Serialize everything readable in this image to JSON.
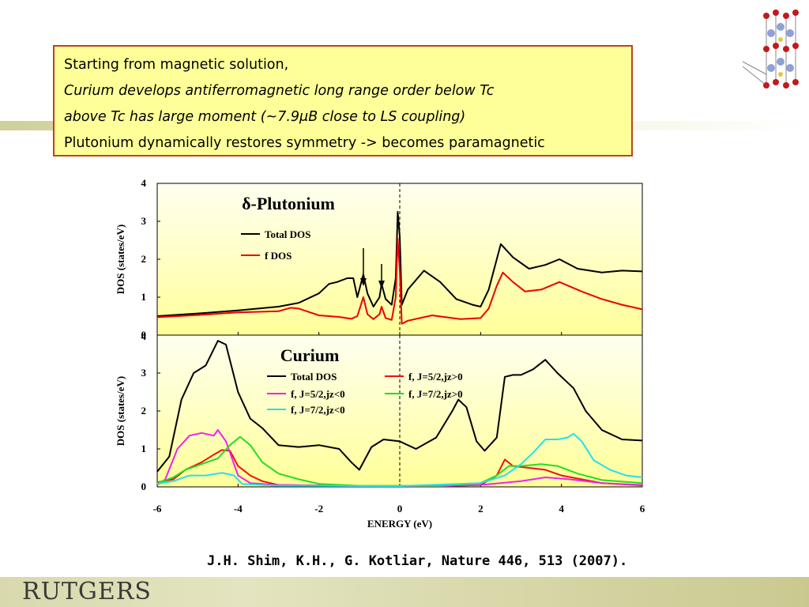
{
  "note": {
    "line1": "Starting from magnetic solution,",
    "line2": "Curium develops antiferromagnetic long range order below Tc",
    "line3": "above Tc has large moment (~7.9μB close to LS coupling)",
    "line4": "Plutonium dynamically restores symmetry -> becomes paramagnetic"
  },
  "citation": "J.H. Shim, K.H., G. Kotliar, Nature 446, 513 (2007).",
  "logo": {
    "text": "RUTGERS"
  },
  "colors": {
    "total": "#000000",
    "f": "#ee0000",
    "f_52_pos": "#ee1111",
    "f_52_neg": "#ee22ee",
    "f_72_pos": "#22dd22",
    "f_72_neg": "#22e0ee",
    "plot_bg_top": "#fffff0",
    "plot_bg_bottom": "#ffff99",
    "box_border": "#c0431a",
    "box_bg": "#ffff99"
  },
  "chart_data": [
    {
      "type": "line",
      "title": "δ-Plutonium",
      "xlabel": "",
      "ylabel": "DOS (states/eV)",
      "xlim": [
        -6,
        6
      ],
      "ylim": [
        0,
        4
      ],
      "yticks": [
        "0",
        "1",
        "2",
        "3",
        "4"
      ],
      "fermi_level": 0,
      "arrows_at_x": [
        -0.9,
        -0.45
      ],
      "series": [
        {
          "name": "Total DOS",
          "color": "#000000",
          "points": [
            [
              -6,
              0.5
            ],
            [
              -5,
              0.57
            ],
            [
              -4,
              0.65
            ],
            [
              -3,
              0.75
            ],
            [
              -2.5,
              0.85
            ],
            [
              -2,
              1.1
            ],
            [
              -1.75,
              1.35
            ],
            [
              -1.55,
              1.4
            ],
            [
              -1.3,
              1.5
            ],
            [
              -1.15,
              1.5
            ],
            [
              -1.05,
              1.0
            ],
            [
              -0.9,
              1.6
            ],
            [
              -0.8,
              1.1
            ],
            [
              -0.65,
              0.75
            ],
            [
              -0.5,
              1.0
            ],
            [
              -0.45,
              1.35
            ],
            [
              -0.35,
              0.95
            ],
            [
              -0.2,
              0.8
            ],
            [
              -0.1,
              1.5
            ],
            [
              -0.05,
              3.25
            ],
            [
              0,
              2.6
            ],
            [
              0.05,
              0.8
            ],
            [
              0.2,
              1.2
            ],
            [
              0.6,
              1.7
            ],
            [
              1.0,
              1.4
            ],
            [
              1.4,
              0.95
            ],
            [
              1.8,
              0.8
            ],
            [
              2.0,
              0.75
            ],
            [
              2.2,
              1.2
            ],
            [
              2.5,
              2.4
            ],
            [
              2.8,
              2.05
            ],
            [
              3.2,
              1.75
            ],
            [
              3.6,
              1.85
            ],
            [
              3.95,
              2.0
            ],
            [
              4.4,
              1.75
            ],
            [
              5.0,
              1.65
            ],
            [
              5.5,
              1.7
            ],
            [
              6,
              1.68
            ]
          ]
        },
        {
          "name": "f DOS",
          "color": "#ee0000",
          "points": [
            [
              -6,
              0.47
            ],
            [
              -5,
              0.53
            ],
            [
              -4,
              0.6
            ],
            [
              -3,
              0.63
            ],
            [
              -2.7,
              0.72
            ],
            [
              -2.5,
              0.7
            ],
            [
              -2,
              0.52
            ],
            [
              -1.5,
              0.48
            ],
            [
              -1.2,
              0.43
            ],
            [
              -1.05,
              0.5
            ],
            [
              -0.9,
              1.0
            ],
            [
              -0.8,
              0.55
            ],
            [
              -0.65,
              0.42
            ],
            [
              -0.5,
              0.55
            ],
            [
              -0.45,
              0.75
            ],
            [
              -0.35,
              0.45
            ],
            [
              -0.2,
              0.4
            ],
            [
              -0.1,
              1.0
            ],
            [
              -0.05,
              2.55
            ],
            [
              0,
              1.7
            ],
            [
              0.05,
              0.3
            ],
            [
              0.2,
              0.38
            ],
            [
              0.8,
              0.52
            ],
            [
              1.5,
              0.42
            ],
            [
              2.0,
              0.45
            ],
            [
              2.2,
              0.7
            ],
            [
              2.4,
              1.3
            ],
            [
              2.55,
              1.65
            ],
            [
              2.8,
              1.4
            ],
            [
              3.1,
              1.15
            ],
            [
              3.5,
              1.2
            ],
            [
              3.95,
              1.4
            ],
            [
              4.5,
              1.15
            ],
            [
              5.0,
              0.95
            ],
            [
              5.5,
              0.8
            ],
            [
              6,
              0.68
            ]
          ]
        }
      ]
    },
    {
      "type": "line",
      "title": "Curium",
      "xlabel": "ENERGY (eV)",
      "ylabel": "DOS (states/eV)",
      "xlim": [
        -6,
        6
      ],
      "ylim": [
        0,
        4
      ],
      "xticks": [
        "-6",
        "-4",
        "-2",
        "0",
        "2",
        "4",
        "6"
      ],
      "yticks": [
        "0",
        "1",
        "2",
        "3",
        "4"
      ],
      "fermi_level": 0,
      "series": [
        {
          "name": "Total DOS",
          "color": "#000000",
          "points": [
            [
              -6,
              0.4
            ],
            [
              -5.7,
              0.8
            ],
            [
              -5.4,
              2.3
            ],
            [
              -5.1,
              3.0
            ],
            [
              -4.8,
              3.2
            ],
            [
              -4.5,
              3.85
            ],
            [
              -4.3,
              3.75
            ],
            [
              -4.0,
              2.5
            ],
            [
              -3.7,
              1.8
            ],
            [
              -3.4,
              1.55
            ],
            [
              -3.0,
              1.1
            ],
            [
              -2.5,
              1.05
            ],
            [
              -2.0,
              1.1
            ],
            [
              -1.5,
              1.0
            ],
            [
              -1.2,
              0.65
            ],
            [
              -1.0,
              0.45
            ],
            [
              -0.7,
              1.05
            ],
            [
              -0.4,
              1.25
            ],
            [
              0,
              1.2
            ],
            [
              0.4,
              1.0
            ],
            [
              0.9,
              1.3
            ],
            [
              1.3,
              2.0
            ],
            [
              1.45,
              2.3
            ],
            [
              1.65,
              2.1
            ],
            [
              1.9,
              1.2
            ],
            [
              2.1,
              0.95
            ],
            [
              2.4,
              1.3
            ],
            [
              2.6,
              2.9
            ],
            [
              2.8,
              2.95
            ],
            [
              3.0,
              2.95
            ],
            [
              3.3,
              3.1
            ],
            [
              3.6,
              3.35
            ],
            [
              3.9,
              3.0
            ],
            [
              4.3,
              2.6
            ],
            [
              4.6,
              2.0
            ],
            [
              5.0,
              1.5
            ],
            [
              5.5,
              1.25
            ],
            [
              6,
              1.22
            ]
          ]
        },
        {
          "name": "f, J=5/2,jz>0",
          "color": "#ee1111",
          "points": [
            [
              -6,
              0.12
            ],
            [
              -5.6,
              0.2
            ],
            [
              -5.3,
              0.45
            ],
            [
              -4.9,
              0.65
            ],
            [
              -4.6,
              0.85
            ],
            [
              -4.4,
              0.97
            ],
            [
              -4.2,
              0.95
            ],
            [
              -4.0,
              0.55
            ],
            [
              -3.7,
              0.3
            ],
            [
              -3.4,
              0.15
            ],
            [
              -3,
              0.05
            ],
            [
              -1,
              0.02
            ],
            [
              1,
              0.02
            ],
            [
              2,
              0.05
            ],
            [
              2.4,
              0.3
            ],
            [
              2.6,
              0.72
            ],
            [
              2.8,
              0.55
            ],
            [
              3.2,
              0.5
            ],
            [
              3.6,
              0.45
            ],
            [
              4.0,
              0.3
            ],
            [
              5,
              0.1
            ],
            [
              6,
              0.04
            ]
          ]
        },
        {
          "name": "f, J=5/2,jz<0",
          "color": "#ee22ee",
          "points": [
            [
              -6,
              0.05
            ],
            [
              -5.8,
              0.2
            ],
            [
              -5.5,
              1.0
            ],
            [
              -5.2,
              1.35
            ],
            [
              -4.9,
              1.42
            ],
            [
              -4.6,
              1.35
            ],
            [
              -4.5,
              1.5
            ],
            [
              -4.3,
              1.2
            ],
            [
              -4.0,
              0.3
            ],
            [
              -3.7,
              0.1
            ],
            [
              -3,
              0.05
            ],
            [
              -1,
              0.02
            ],
            [
              1,
              0.02
            ],
            [
              2.0,
              0.05
            ],
            [
              3.0,
              0.15
            ],
            [
              3.6,
              0.25
            ],
            [
              4.2,
              0.2
            ],
            [
              5,
              0.1
            ],
            [
              6,
              0.05
            ]
          ]
        },
        {
          "name": "f, J=7/2,jz>0",
          "color": "#22dd22",
          "points": [
            [
              -6,
              0.1
            ],
            [
              -5.6,
              0.25
            ],
            [
              -5.3,
              0.45
            ],
            [
              -4.9,
              0.6
            ],
            [
              -4.5,
              0.75
            ],
            [
              -4.2,
              1.1
            ],
            [
              -3.95,
              1.32
            ],
            [
              -3.7,
              1.1
            ],
            [
              -3.4,
              0.65
            ],
            [
              -3.0,
              0.35
            ],
            [
              -2.5,
              0.2
            ],
            [
              -2,
              0.08
            ],
            [
              -1,
              0.03
            ],
            [
              1,
              0.03
            ],
            [
              2.0,
              0.1
            ],
            [
              2.4,
              0.3
            ],
            [
              2.7,
              0.55
            ],
            [
              3.0,
              0.55
            ],
            [
              3.5,
              0.6
            ],
            [
              3.9,
              0.55
            ],
            [
              4.4,
              0.35
            ],
            [
              5,
              0.18
            ],
            [
              6,
              0.1
            ]
          ]
        },
        {
          "name": "f, J=7/2,jz<0",
          "color": "#22e0ee",
          "points": [
            [
              -6,
              0.08
            ],
            [
              -5.6,
              0.15
            ],
            [
              -5.2,
              0.3
            ],
            [
              -4.8,
              0.3
            ],
            [
              -4.4,
              0.37
            ],
            [
              -4.1,
              0.3
            ],
            [
              -3.9,
              0.08
            ],
            [
              -3,
              0.03
            ],
            [
              0,
              0.02
            ],
            [
              2.0,
              0.1
            ],
            [
              2.6,
              0.3
            ],
            [
              3.0,
              0.6
            ],
            [
              3.3,
              0.9
            ],
            [
              3.6,
              1.25
            ],
            [
              3.9,
              1.25
            ],
            [
              4.15,
              1.3
            ],
            [
              4.3,
              1.4
            ],
            [
              4.5,
              1.2
            ],
            [
              4.8,
              0.7
            ],
            [
              5.2,
              0.45
            ],
            [
              5.6,
              0.3
            ],
            [
              6,
              0.25
            ]
          ]
        }
      ]
    }
  ]
}
